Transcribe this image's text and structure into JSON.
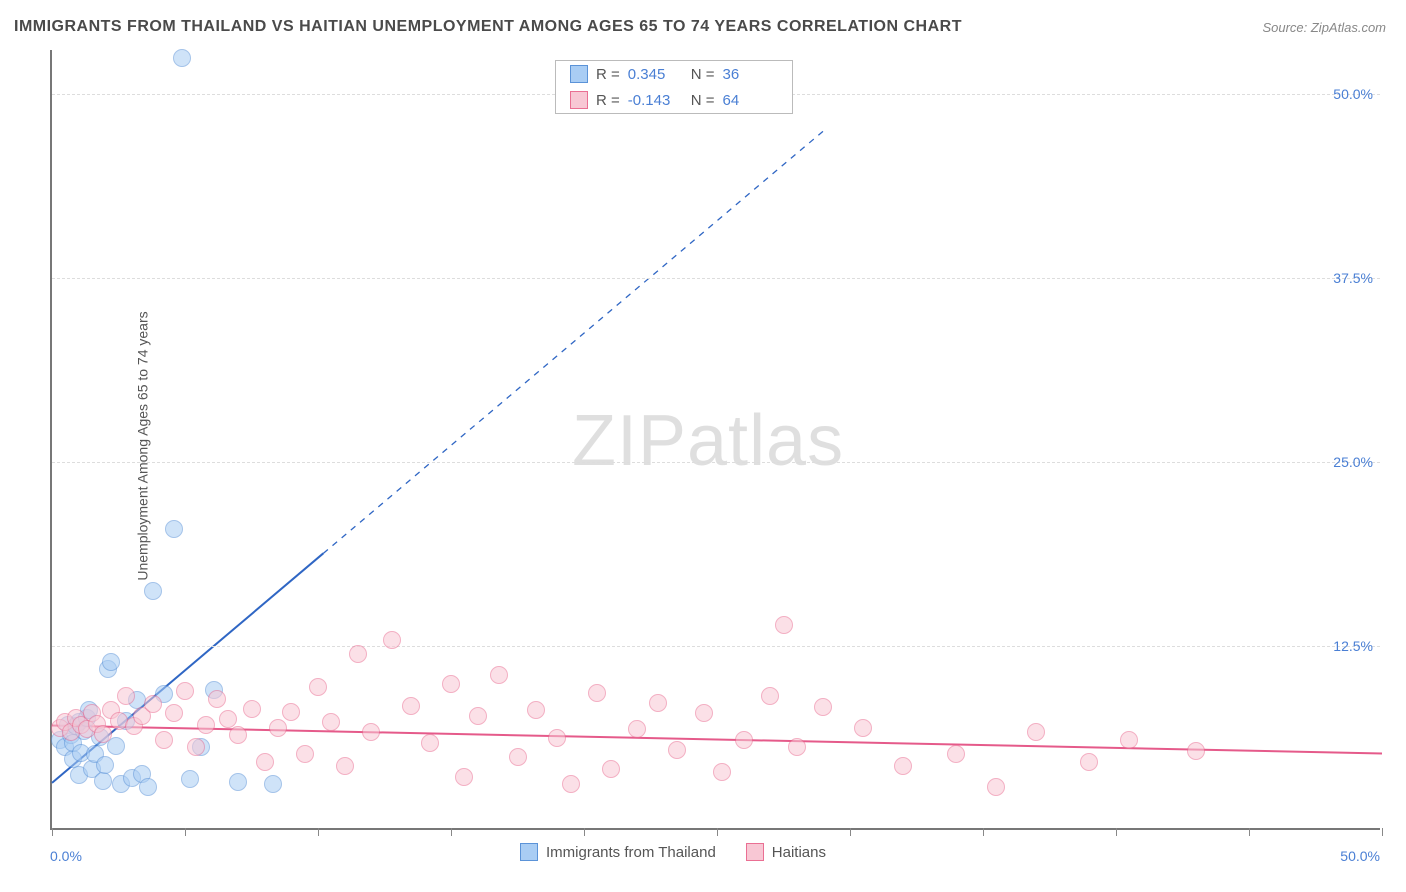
{
  "title": "IMMIGRANTS FROM THAILAND VS HAITIAN UNEMPLOYMENT AMONG AGES 65 TO 74 YEARS CORRELATION CHART",
  "source": "Source: ZipAtlas.com",
  "y_axis_label": "Unemployment Among Ages 65 to 74 years",
  "watermark_a": "ZIP",
  "watermark_b": "atlas",
  "chart": {
    "type": "scatter",
    "xlim": [
      0,
      50
    ],
    "ylim": [
      0,
      53
    ],
    "x_ticks": [
      0,
      5,
      10,
      15,
      20,
      25,
      30,
      35,
      40,
      45,
      50
    ],
    "x_tick_labels": {
      "0": "0.0%",
      "50": "50.0%"
    },
    "y_ticks": [
      12.5,
      25.0,
      37.5,
      50.0
    ],
    "y_tick_labels": [
      "12.5%",
      "25.0%",
      "37.5%",
      "50.0%"
    ],
    "grid_color": "#dddddd",
    "background_color": "#ffffff",
    "axis_color": "#777777",
    "tick_label_color": "#4a7fd4",
    "marker_radius": 9,
    "marker_border_width": 1.4,
    "series": [
      {
        "name": "Immigrants from Thailand",
        "fill": "#a9cdf4",
        "stroke": "#5b93d8",
        "fill_opacity": 0.55,
        "R": "0.345",
        "N": "36",
        "trend": {
          "x1": 0,
          "y1": 3.2,
          "x2": 10.2,
          "y2": 18.8,
          "dash_x2": 29,
          "dash_y2": 47.5,
          "color": "#2f66c4",
          "width": 2
        },
        "points": [
          [
            0.3,
            6.0
          ],
          [
            0.5,
            5.5
          ],
          [
            0.6,
            7.0
          ],
          [
            0.7,
            6.3
          ],
          [
            0.8,
            4.7
          ],
          [
            0.8,
            5.8
          ],
          [
            0.9,
            6.9
          ],
          [
            1.0,
            7.2
          ],
          [
            1.0,
            3.6
          ],
          [
            1.1,
            5.1
          ],
          [
            1.2,
            6.6
          ],
          [
            1.3,
            7.5
          ],
          [
            1.4,
            8.0
          ],
          [
            1.5,
            4.0
          ],
          [
            1.6,
            5.0
          ],
          [
            1.8,
            6.2
          ],
          [
            1.9,
            3.2
          ],
          [
            2.0,
            4.3
          ],
          [
            2.1,
            10.8
          ],
          [
            2.2,
            11.3
          ],
          [
            2.4,
            5.6
          ],
          [
            2.6,
            3.0
          ],
          [
            2.8,
            7.3
          ],
          [
            3.0,
            3.4
          ],
          [
            3.2,
            8.7
          ],
          [
            3.4,
            3.7
          ],
          [
            3.6,
            2.8
          ],
          [
            3.8,
            16.1
          ],
          [
            4.2,
            9.1
          ],
          [
            4.6,
            20.3
          ],
          [
            4.9,
            52.3
          ],
          [
            5.2,
            3.3
          ],
          [
            5.6,
            5.5
          ],
          [
            6.1,
            9.4
          ],
          [
            7.0,
            3.1
          ],
          [
            8.3,
            3.0
          ]
        ]
      },
      {
        "name": "Haitians",
        "fill": "#f8c7d4",
        "stroke": "#ea6f93",
        "fill_opacity": 0.55,
        "R": "-0.143",
        "N": "64",
        "trend": {
          "x1": 0,
          "y1": 7.1,
          "x2": 50,
          "y2": 5.2,
          "color": "#e55a8a",
          "width": 2
        },
        "points": [
          [
            0.3,
            6.8
          ],
          [
            0.5,
            7.2
          ],
          [
            0.7,
            6.5
          ],
          [
            0.9,
            7.5
          ],
          [
            1.1,
            7.0
          ],
          [
            1.3,
            6.7
          ],
          [
            1.5,
            7.8
          ],
          [
            1.7,
            7.1
          ],
          [
            1.9,
            6.4
          ],
          [
            2.2,
            8.0
          ],
          [
            2.5,
            7.3
          ],
          [
            2.8,
            9.0
          ],
          [
            3.1,
            6.9
          ],
          [
            3.4,
            7.6
          ],
          [
            3.8,
            8.4
          ],
          [
            4.2,
            6.0
          ],
          [
            4.6,
            7.8
          ],
          [
            5.0,
            9.3
          ],
          [
            5.4,
            5.5
          ],
          [
            5.8,
            7.0
          ],
          [
            6.2,
            8.8
          ],
          [
            6.6,
            7.4
          ],
          [
            7.0,
            6.3
          ],
          [
            7.5,
            8.1
          ],
          [
            8.0,
            4.5
          ],
          [
            8.5,
            6.8
          ],
          [
            9.0,
            7.9
          ],
          [
            9.5,
            5.0
          ],
          [
            10.0,
            9.6
          ],
          [
            10.5,
            7.2
          ],
          [
            11.0,
            4.2
          ],
          [
            11.5,
            11.8
          ],
          [
            12.0,
            6.5
          ],
          [
            12.8,
            12.8
          ],
          [
            13.5,
            8.3
          ],
          [
            14.2,
            5.8
          ],
          [
            15.0,
            9.8
          ],
          [
            15.5,
            3.5
          ],
          [
            16.0,
            7.6
          ],
          [
            16.8,
            10.4
          ],
          [
            17.5,
            4.8
          ],
          [
            18.2,
            8.0
          ],
          [
            19.0,
            6.1
          ],
          [
            19.5,
            3.0
          ],
          [
            20.5,
            9.2
          ],
          [
            21.0,
            4.0
          ],
          [
            22.0,
            6.7
          ],
          [
            22.8,
            8.5
          ],
          [
            23.5,
            5.3
          ],
          [
            24.5,
            7.8
          ],
          [
            25.2,
            3.8
          ],
          [
            26.0,
            6.0
          ],
          [
            27.0,
            9.0
          ],
          [
            27.5,
            13.8
          ],
          [
            28.0,
            5.5
          ],
          [
            29.0,
            8.2
          ],
          [
            30.5,
            6.8
          ],
          [
            32.0,
            4.2
          ],
          [
            34.0,
            5.0
          ],
          [
            35.5,
            2.8
          ],
          [
            37.0,
            6.5
          ],
          [
            39.0,
            4.5
          ],
          [
            40.5,
            6.0
          ],
          [
            43.0,
            5.2
          ]
        ]
      }
    ]
  },
  "legend_stats": {
    "r_label": "R =",
    "n_label": "N ="
  },
  "bottom_legend": {
    "items": [
      "Immigrants from Thailand",
      "Haitians"
    ]
  }
}
